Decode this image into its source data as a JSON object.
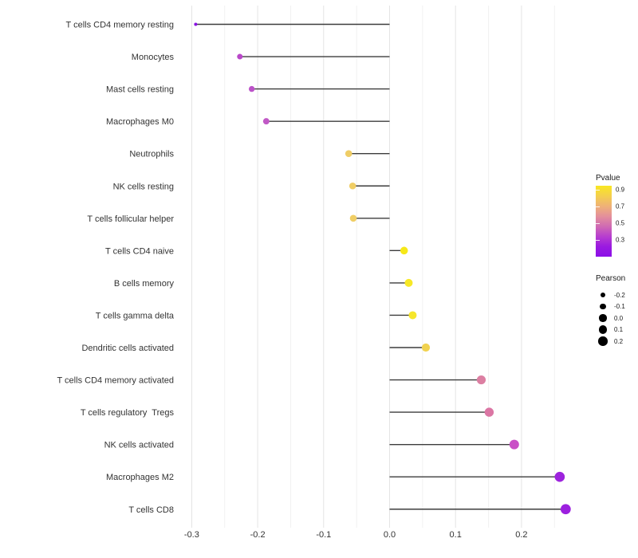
{
  "chart_data": {
    "type": "lollipop",
    "orientation": "horizontal",
    "title": "",
    "xlabel": "",
    "ylabel": "",
    "x_tick_labels": [
      "-0.3",
      "-0.2",
      "-0.1",
      "0.0",
      "0.1",
      "0.2"
    ],
    "x_ticks": [
      -0.3,
      -0.2,
      -0.1,
      0.0,
      0.1,
      0.2
    ],
    "x_minor_ticks": [
      -0.25,
      -0.15,
      -0.05,
      0.05,
      0.15,
      0.25
    ],
    "xlim": [
      -0.322,
      0.295
    ],
    "grid": "vertical major+minor, light gray, no axis lines, no tick marks",
    "baseline": 0.0,
    "points": [
      {
        "label": "T cells CD4 memory resting",
        "pearson": -0.294,
        "pvalue": 0.12,
        "color": "#8a12e3",
        "radius": 2.0
      },
      {
        "label": "Monocytes",
        "pearson": -0.227,
        "pvalue": 0.33,
        "color": "#b948c9",
        "radius": 3.5
      },
      {
        "label": "Mast cells resting",
        "pearson": -0.209,
        "pvalue": 0.34,
        "color": "#bc52c9",
        "radius": 3.7
      },
      {
        "label": "Macrophages M0",
        "pearson": -0.187,
        "pvalue": 0.37,
        "color": "#c159c6",
        "radius": 4.0
      },
      {
        "label": "Neutrophils",
        "pearson": -0.062,
        "pvalue": 0.76,
        "color": "#efcd66",
        "radius": 4.3
      },
      {
        "label": "NK cells resting",
        "pearson": -0.056,
        "pvalue": 0.77,
        "color": "#f0ce65",
        "radius": 4.3
      },
      {
        "label": "T cells follicular helper",
        "pearson": -0.055,
        "pvalue": 0.77,
        "color": "#f0ce65",
        "radius": 4.3
      },
      {
        "label": "T cells CD4 naive",
        "pearson": 0.022,
        "pvalue": 0.92,
        "color": "#f6e818",
        "radius": 4.8
      },
      {
        "label": "B cells memory",
        "pearson": 0.029,
        "pvalue": 0.91,
        "color": "#f7e826",
        "radius": 5.0
      },
      {
        "label": "T cells gamma delta",
        "pearson": 0.035,
        "pvalue": 0.91,
        "color": "#f6e62c",
        "radius": 5.0
      },
      {
        "label": "Dendritic cells activated",
        "pearson": 0.055,
        "pvalue": 0.84,
        "color": "#f1d24f",
        "radius": 5.1
      },
      {
        "label": "T cells CD4 memory activated",
        "pearson": 0.139,
        "pvalue": 0.52,
        "color": "#dc7fa2",
        "radius": 5.6
      },
      {
        "label": "T cells regulatory  Tregs",
        "pearson": 0.151,
        "pvalue": 0.5,
        "color": "#db76a4",
        "radius": 5.7
      },
      {
        "label": "NK cells activated",
        "pearson": 0.189,
        "pvalue": 0.33,
        "color": "#c94fc6",
        "radius": 6.0
      },
      {
        "label": "Macrophages M2",
        "pearson": 0.258,
        "pvalue": 0.18,
        "color": "#9d23dd",
        "radius": 6.3
      },
      {
        "label": "T cells CD8",
        "pearson": 0.267,
        "pvalue": 0.17,
        "color": "#9c20df",
        "radius": 6.4
      }
    ]
  },
  "legend_pvalue": {
    "title": "Pvalue",
    "tick_labels": [
      "0.9",
      "0.7",
      "0.5",
      "0.3"
    ],
    "tick_values": [
      0.9,
      0.7,
      0.5,
      0.3
    ],
    "range_top": 0.95,
    "range_bottom": 0.1,
    "gradient_top_to_bottom": [
      "#f9e721",
      "#f4cf4d",
      "#efb277",
      "#e4909b",
      "#d06bb2",
      "#b73ecf",
      "#9a1ae0",
      "#8c0fe8"
    ]
  },
  "legend_pearson": {
    "title": "Pearson",
    "dot_color": "#000000",
    "entries": [
      {
        "label": "-0.2",
        "radius": 3.2
      },
      {
        "label": "-0.1",
        "radius": 3.9
      },
      {
        "label": "0.0",
        "radius": 4.6
      },
      {
        "label": "0.1",
        "radius": 5.2
      },
      {
        "label": "0.2",
        "radius": 5.8
      }
    ]
  },
  "colors": {
    "background": "#ffffff",
    "stem": "#3c3c3c",
    "grid_major": "#e4e4e4",
    "grid_minor": "#f1f1f1",
    "axis_text": "#333333",
    "legend_text": "#1a1a1a"
  }
}
